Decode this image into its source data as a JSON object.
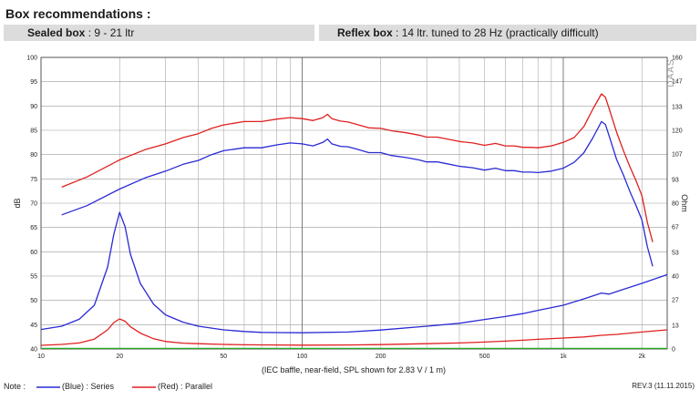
{
  "header": {
    "title": "Box recommendations :",
    "sealed_label": "Sealed box",
    "sealed_value": ": 9 - 21 ltr",
    "reflex_label": "Reflex box",
    "reflex_value": ": 14 ltr. tuned to 28 Hz (practically difficult)"
  },
  "chart_data": {
    "type": "line",
    "xscale": "log",
    "xlim": [
      10,
      2500
    ],
    "ylim_left": [
      40,
      100
    ],
    "ylim_right": [
      0,
      160
    ],
    "left_ticks": [
      40,
      45,
      50,
      55,
      60,
      65,
      70,
      75,
      80,
      85,
      90,
      95,
      100
    ],
    "right_ticks": [
      0,
      13,
      27,
      40,
      53,
      67,
      80,
      93,
      107,
      120,
      133,
      147,
      160
    ],
    "x_ticks": [
      {
        "v": 10,
        "label": "10"
      },
      {
        "v": 20,
        "label": "20"
      },
      {
        "v": 50,
        "label": "50"
      },
      {
        "v": 100,
        "label": "100"
      },
      {
        "v": 200,
        "label": "200"
      },
      {
        "v": 500,
        "label": "500"
      },
      {
        "v": 1000,
        "label": "1k"
      },
      {
        "v": 2000,
        "label": "2k"
      }
    ],
    "ylabel_left": "dB",
    "ylabel_right": "Ohm",
    "xlabel": "(IEC baffle, near-field, SPL shown for 2.83 V / 1 m)",
    "watermark": "DAAS",
    "grid": true,
    "series": [
      {
        "name": "SPL Series",
        "axis": "left",
        "color": "#2a2ad6",
        "points": [
          [
            12,
            67.6
          ],
          [
            15,
            69.5
          ],
          [
            20,
            72.9
          ],
          [
            25,
            75.2
          ],
          [
            30,
            76.6
          ],
          [
            35,
            78
          ],
          [
            40,
            78.8
          ],
          [
            45,
            80
          ],
          [
            50,
            80.8
          ],
          [
            60,
            81.4
          ],
          [
            70,
            81.4
          ],
          [
            80,
            82
          ],
          [
            90,
            82.4
          ],
          [
            100,
            82.2
          ],
          [
            110,
            81.8
          ],
          [
            120,
            82.5
          ],
          [
            125,
            83.2
          ],
          [
            130,
            82.2
          ],
          [
            140,
            81.7
          ],
          [
            150,
            81.6
          ],
          [
            160,
            81.2
          ],
          [
            180,
            80.4
          ],
          [
            200,
            80.4
          ],
          [
            220,
            79.8
          ],
          [
            250,
            79.4
          ],
          [
            280,
            78.9
          ],
          [
            300,
            78.5
          ],
          [
            330,
            78.5
          ],
          [
            360,
            78.1
          ],
          [
            400,
            77.6
          ],
          [
            450,
            77.3
          ],
          [
            500,
            76.8
          ],
          [
            550,
            77.2
          ],
          [
            600,
            76.7
          ],
          [
            650,
            76.7
          ],
          [
            700,
            76.4
          ],
          [
            750,
            76.4
          ],
          [
            800,
            76.3
          ],
          [
            900,
            76.6
          ],
          [
            1000,
            77.2
          ],
          [
            1100,
            78.4
          ],
          [
            1200,
            80.4
          ],
          [
            1300,
            83.5
          ],
          [
            1400,
            86.8
          ],
          [
            1450,
            86.2
          ],
          [
            1500,
            83.8
          ],
          [
            1600,
            79
          ],
          [
            1700,
            75.8
          ],
          [
            1800,
            72.4
          ],
          [
            1900,
            69.5
          ],
          [
            2000,
            66.6
          ],
          [
            2100,
            61
          ],
          [
            2200,
            57
          ]
        ]
      },
      {
        "name": "SPL Parallel",
        "axis": "left",
        "color": "#e02020",
        "points": [
          [
            12,
            73.3
          ],
          [
            15,
            75.4
          ],
          [
            20,
            78.9
          ],
          [
            25,
            81
          ],
          [
            30,
            82.2
          ],
          [
            35,
            83.5
          ],
          [
            40,
            84.3
          ],
          [
            45,
            85.4
          ],
          [
            50,
            86.1
          ],
          [
            60,
            86.8
          ],
          [
            70,
            86.8
          ],
          [
            80,
            87.3
          ],
          [
            90,
            87.6
          ],
          [
            100,
            87.4
          ],
          [
            110,
            87
          ],
          [
            120,
            87.6
          ],
          [
            125,
            88.3
          ],
          [
            130,
            87.4
          ],
          [
            140,
            86.9
          ],
          [
            150,
            86.7
          ],
          [
            160,
            86.3
          ],
          [
            180,
            85.5
          ],
          [
            200,
            85.4
          ],
          [
            220,
            84.9
          ],
          [
            250,
            84.5
          ],
          [
            280,
            84
          ],
          [
            300,
            83.6
          ],
          [
            330,
            83.6
          ],
          [
            360,
            83.2
          ],
          [
            400,
            82.7
          ],
          [
            450,
            82.4
          ],
          [
            500,
            81.9
          ],
          [
            550,
            82.3
          ],
          [
            600,
            81.8
          ],
          [
            650,
            81.8
          ],
          [
            700,
            81.5
          ],
          [
            750,
            81.5
          ],
          [
            800,
            81.4
          ],
          [
            900,
            81.8
          ],
          [
            1000,
            82.5
          ],
          [
            1100,
            83.5
          ],
          [
            1200,
            85.8
          ],
          [
            1300,
            89.4
          ],
          [
            1400,
            92.5
          ],
          [
            1450,
            91.8
          ],
          [
            1500,
            89.4
          ],
          [
            1600,
            84.6
          ],
          [
            1700,
            80.8
          ],
          [
            1800,
            77.5
          ],
          [
            1900,
            74.6
          ],
          [
            2000,
            71.6
          ],
          [
            2100,
            66
          ],
          [
            2200,
            62
          ]
        ]
      },
      {
        "name": "Impedance Series",
        "axis": "right",
        "color": "#2a2ad6",
        "points": [
          [
            10,
            10.7
          ],
          [
            12,
            12.5
          ],
          [
            14,
            16.3
          ],
          [
            16,
            24
          ],
          [
            18,
            45
          ],
          [
            19,
            63
          ],
          [
            20,
            75
          ],
          [
            21,
            67
          ],
          [
            22,
            52
          ],
          [
            24,
            36
          ],
          [
            27,
            24.5
          ],
          [
            30,
            18.7
          ],
          [
            35,
            14.7
          ],
          [
            40,
            12.5
          ],
          [
            50,
            10.5
          ],
          [
            60,
            9.6
          ],
          [
            70,
            9.1
          ],
          [
            80,
            9
          ],
          [
            100,
            8.9
          ],
          [
            150,
            9.3
          ],
          [
            200,
            10.4
          ],
          [
            300,
            12.5
          ],
          [
            400,
            14.1
          ],
          [
            500,
            16.2
          ],
          [
            600,
            17.8
          ],
          [
            700,
            19.4
          ],
          [
            800,
            21.2
          ],
          [
            1000,
            24
          ],
          [
            1200,
            27.5
          ],
          [
            1400,
            30.7
          ],
          [
            1500,
            30.1
          ],
          [
            1600,
            31.5
          ],
          [
            2000,
            36
          ],
          [
            2500,
            40.8
          ]
        ]
      },
      {
        "name": "Impedance Parallel",
        "axis": "right",
        "color": "#e02020",
        "points": [
          [
            10,
            2
          ],
          [
            12,
            2.5
          ],
          [
            14,
            3.3
          ],
          [
            16,
            5.4
          ],
          [
            18,
            10.5
          ],
          [
            19,
            14.5
          ],
          [
            20,
            16.5
          ],
          [
            21,
            15.2
          ],
          [
            22,
            12.2
          ],
          [
            24,
            8.7
          ],
          [
            27,
            5.6
          ],
          [
            30,
            4.1
          ],
          [
            35,
            3.2
          ],
          [
            40,
            2.9
          ],
          [
            50,
            2.5
          ],
          [
            60,
            2.3
          ],
          [
            80,
            2.2
          ],
          [
            100,
            2.1
          ],
          [
            150,
            2.2
          ],
          [
            200,
            2.4
          ],
          [
            300,
            2.9
          ],
          [
            400,
            3.3
          ],
          [
            500,
            3.8
          ],
          [
            600,
            4.3
          ],
          [
            700,
            4.8
          ],
          [
            800,
            5.3
          ],
          [
            1000,
            6
          ],
          [
            1200,
            6.6
          ],
          [
            1400,
            7.5
          ],
          [
            1600,
            8
          ],
          [
            2000,
            9.3
          ],
          [
            2500,
            10.5
          ]
        ]
      },
      {
        "name": "Zero line",
        "axis": "right",
        "color": "#22aa22",
        "points": [
          [
            10,
            0.3
          ],
          [
            2500,
            0.3
          ]
        ]
      }
    ]
  },
  "footer": {
    "note": "Note :",
    "blue_label": "(Blue) : Series",
    "red_label": "(Red) : Parallel",
    "rev": "REV.3 (11.11.2015)"
  }
}
